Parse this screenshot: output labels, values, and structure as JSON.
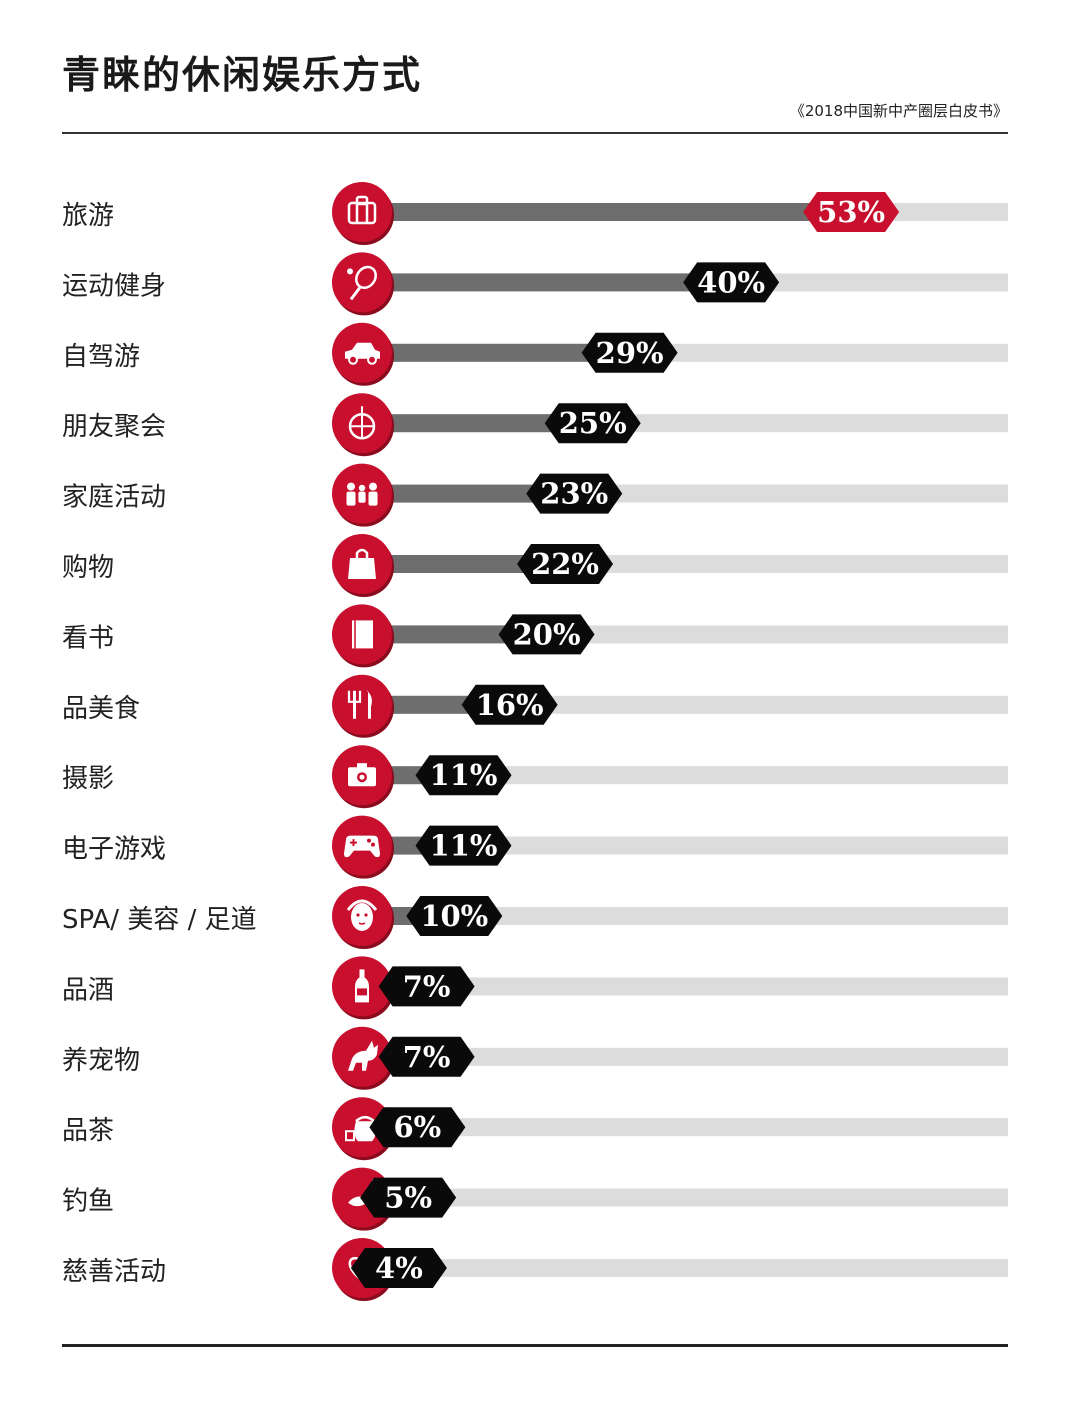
{
  "header": {
    "title": "青睐的休闲娱乐方式",
    "source": "《2018中国新中产圈层白皮书》"
  },
  "colors": {
    "accent": "#c8102e",
    "bar": "#6e6e6e",
    "track": "#dcdcdc",
    "tag": "#0a0a0a"
  },
  "chart_data": {
    "type": "bar",
    "orientation": "horizontal",
    "title": "青睐的休闲娱乐方式",
    "categories": [
      "旅游",
      "运动健身",
      "自驾游",
      "朋友聚会",
      "家庭活动",
      "购物",
      "看书",
      "品美食",
      "摄影",
      "电子游戏",
      "SPA/ 美容 / 足道",
      "品酒",
      "养宠物",
      "品茶",
      "钓鱼",
      "慈善活动"
    ],
    "values": [
      53,
      40,
      29,
      25,
      23,
      22,
      20,
      16,
      11,
      11,
      10,
      7,
      7,
      6,
      5,
      4
    ],
    "value_labels": [
      "53%",
      "40%",
      "29%",
      "25%",
      "23%",
      "22%",
      "20%",
      "16%",
      "11%",
      "11%",
      "10%",
      "7%",
      "7%",
      "6%",
      "5%",
      "4%"
    ],
    "icons": [
      "luggage-icon",
      "tennis-racket-icon",
      "car-icon",
      "disco-ball-icon",
      "family-icon",
      "shopping-bag-icon",
      "book-icon",
      "fork-knife-icon",
      "camera-icon",
      "gamepad-icon",
      "face-mask-icon",
      "wine-bottle-icon",
      "cat-icon",
      "teapot-icon",
      "fish-hook-icon",
      "heart-icon"
    ],
    "highlight_index": 0,
    "unit": "%",
    "grid": false,
    "legend": "none"
  }
}
